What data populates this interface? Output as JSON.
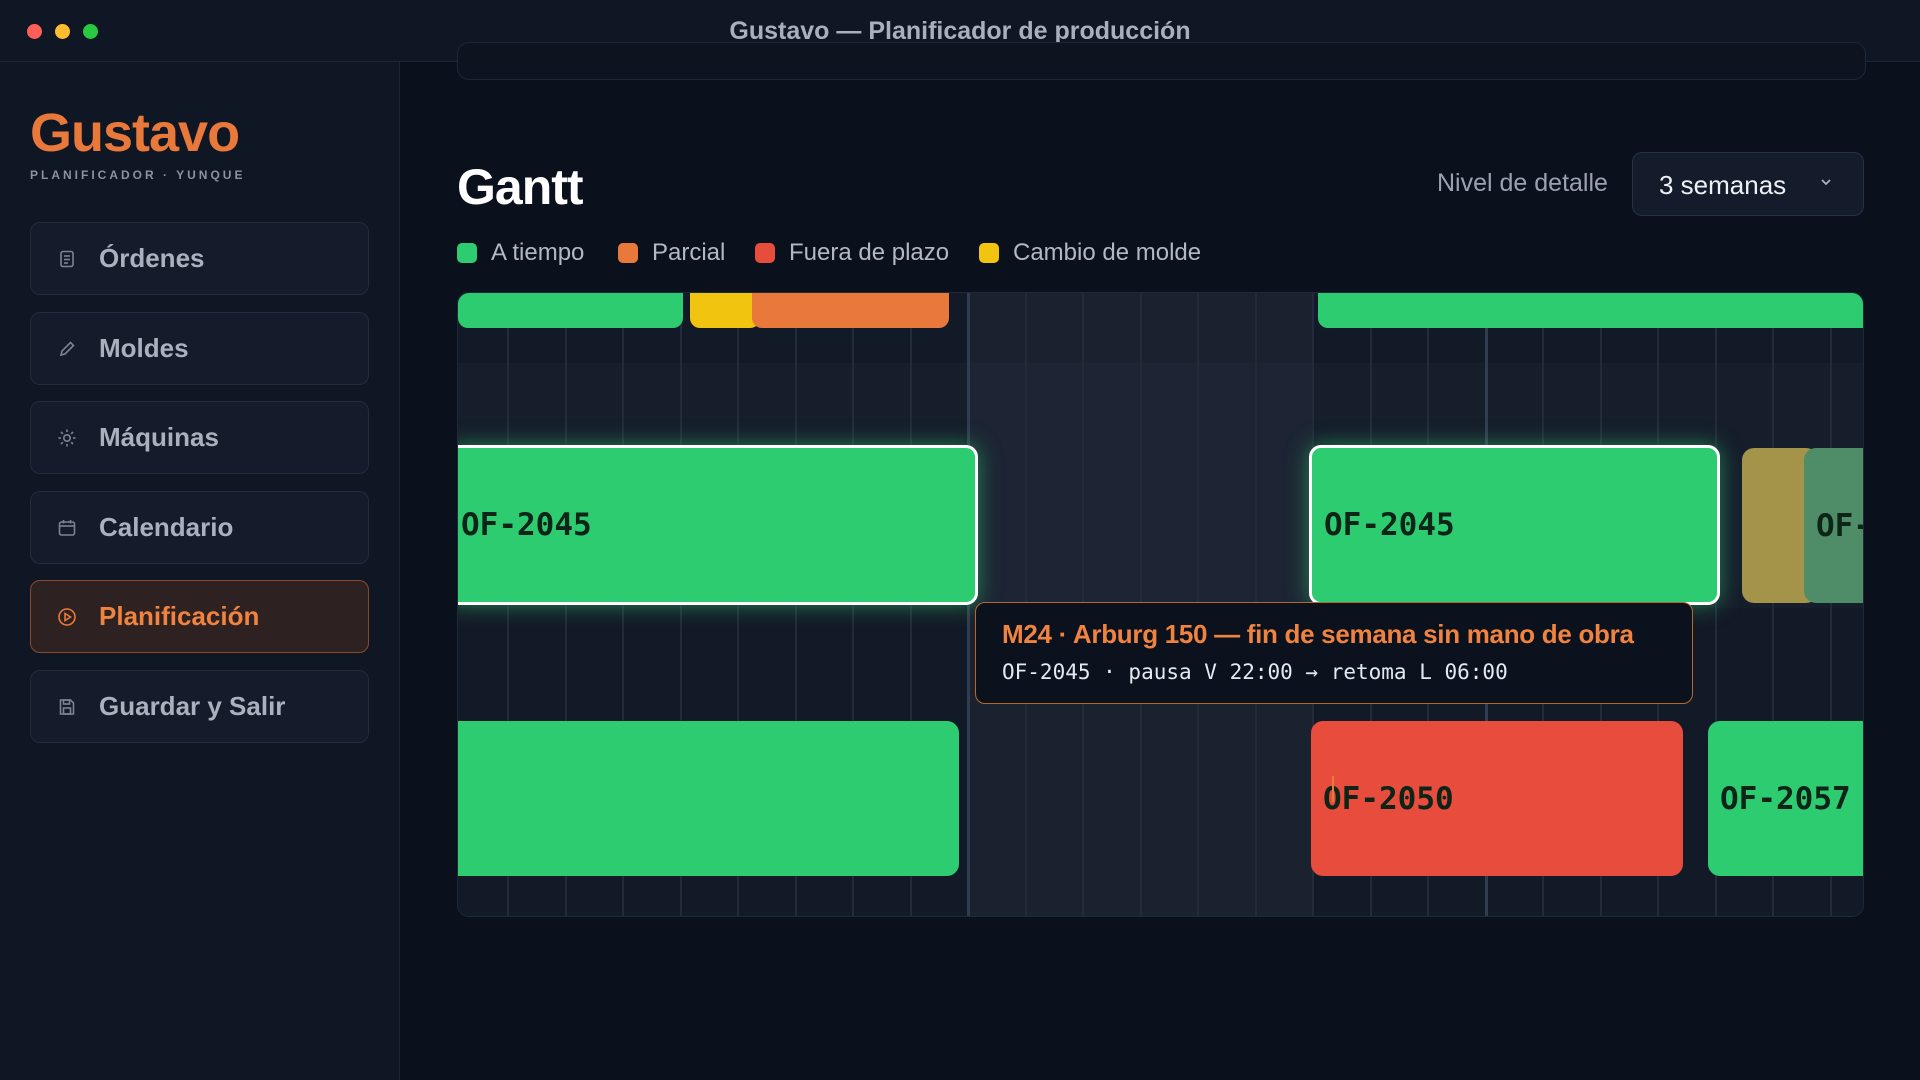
{
  "window": {
    "title": "Gustavo — Planificador de producción"
  },
  "brand": {
    "name": "Gustavo",
    "subtitle": "PLANIFICADOR · YUNQUE"
  },
  "sidebar": {
    "items": [
      {
        "label": "Órdenes",
        "icon": "clipboard-icon",
        "active": false
      },
      {
        "label": "Moldes",
        "icon": "pencil-icon",
        "active": false
      },
      {
        "label": "Máquinas",
        "icon": "gear-icon",
        "active": false
      },
      {
        "label": "Calendario",
        "icon": "calendar-icon",
        "active": false
      },
      {
        "label": "Planificación",
        "icon": "play-circle-icon",
        "active": true
      },
      {
        "label": "Guardar y Salir",
        "icon": "save-icon",
        "active": false
      }
    ]
  },
  "main": {
    "title": "Gantt",
    "detail_label": "Nivel de detalle",
    "detail_select": {
      "value": "3 semanas"
    },
    "legend": [
      {
        "label": "A tiempo",
        "color": "#2ecc71"
      },
      {
        "label": "Parcial",
        "color": "#e8793a"
      },
      {
        "label": "Fuera de plazo",
        "color": "#e74c3c"
      },
      {
        "label": "Cambio de molde",
        "color": "#f1c40f"
      }
    ]
  },
  "gantt": {
    "bars": [
      {
        "label": "",
        "status": "A tiempo",
        "color": "#2ecc71"
      },
      {
        "label": "",
        "status": "Cambio de molde",
        "color": "#f1c40f"
      },
      {
        "label": "",
        "status": "Parcial",
        "color": "#e8793a"
      },
      {
        "label": "",
        "status": "A tiempo",
        "color": "#2ecc71"
      },
      {
        "label": "OF-2045",
        "status": "A tiempo",
        "color": "#2ecc71",
        "selected": true
      },
      {
        "label": "OF-2045",
        "status": "A tiempo",
        "color": "#2ecc71",
        "selected": true
      },
      {
        "label": "",
        "status": "Cambio de molde",
        "color": "#a3944a"
      },
      {
        "label": "OF-",
        "status": "A tiempo",
        "color": "#4f8c68"
      },
      {
        "label": "",
        "status": "A tiempo",
        "color": "#2ecc71"
      },
      {
        "label": "OF-2050",
        "status": "Fuera de plazo",
        "color": "#e74c3c"
      },
      {
        "label": "OF-2057",
        "status": "A tiempo",
        "color": "#2ecc71"
      }
    ],
    "tooltip": {
      "title": "M24 · Arburg 150 — fin de semana sin mano de obra",
      "detail": "OF-2045 · pausa V 22:00 → retoma L 06:00"
    }
  }
}
